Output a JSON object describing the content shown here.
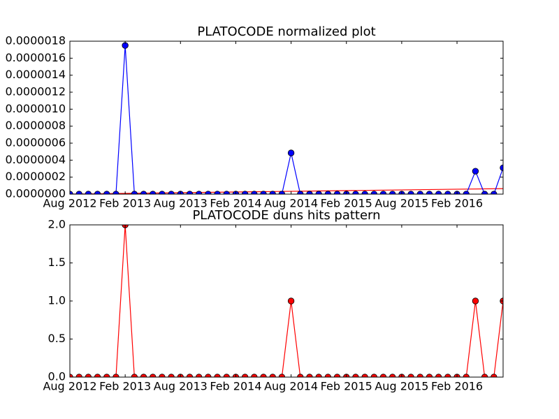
{
  "chart_data": [
    {
      "type": "line",
      "title": "PLATOCODE normalized plot",
      "x": [
        "2012-08",
        "2012-09",
        "2012-10",
        "2012-11",
        "2012-12",
        "2013-01",
        "2013-02",
        "2013-03",
        "2013-04",
        "2013-05",
        "2013-06",
        "2013-07",
        "2013-08",
        "2013-09",
        "2013-10",
        "2013-11",
        "2013-12",
        "2014-01",
        "2014-02",
        "2014-03",
        "2014-04",
        "2014-05",
        "2014-06",
        "2014-07",
        "2014-08",
        "2014-09",
        "2014-10",
        "2014-11",
        "2014-12",
        "2015-01",
        "2015-02",
        "2015-03",
        "2015-04",
        "2015-05",
        "2015-06",
        "2015-07",
        "2015-08",
        "2015-09",
        "2015-10",
        "2015-11",
        "2015-12",
        "2016-01",
        "2016-02",
        "2016-03",
        "2016-04",
        "2016-05",
        "2016-06",
        "2016-07"
      ],
      "series": [
        {
          "color": "#0000ff",
          "values": [
            0,
            0,
            0,
            0,
            0,
            0,
            1.75e-06,
            0,
            0,
            0,
            0,
            0,
            0,
            0,
            0,
            0,
            0,
            0,
            0,
            0,
            0,
            0,
            0,
            0,
            4.85e-07,
            0,
            0,
            0,
            0,
            0,
            0,
            0,
            0,
            0,
            0,
            0,
            0,
            0,
            0,
            0,
            0,
            0,
            0,
            0,
            2.7e-07,
            0,
            0,
            3.1e-07
          ]
        }
      ],
      "trend": {
        "color": "#ff0000",
        "x": [
          "2012-08",
          "2016-07"
        ],
        "values": [
          0,
          6.5e-08
        ]
      },
      "xlim": [
        "2012-08",
        "2016-07"
      ],
      "xticks": [
        {
          "value": "2012-08",
          "label": "Aug 2012"
        },
        {
          "value": "2013-02",
          "label": "Feb 2013"
        },
        {
          "value": "2013-08",
          "label": "Aug 2013"
        },
        {
          "value": "2014-02",
          "label": "Feb 2014"
        },
        {
          "value": "2014-08",
          "label": "Aug 2014"
        },
        {
          "value": "2015-02",
          "label": "Feb 2015"
        },
        {
          "value": "2015-08",
          "label": "Aug 2015"
        },
        {
          "value": "2016-02",
          "label": "Feb 2016"
        }
      ],
      "ylim": [
        0,
        1.8e-06
      ],
      "yticks": [
        {
          "value": 0,
          "label": "0.0000000"
        },
        {
          "value": 2e-07,
          "label": "0.0000002"
        },
        {
          "value": 4e-07,
          "label": "0.0000004"
        },
        {
          "value": 6e-07,
          "label": "0.0000006"
        },
        {
          "value": 8e-07,
          "label": "0.0000008"
        },
        {
          "value": 1e-06,
          "label": "0.0000010"
        },
        {
          "value": 1.2e-06,
          "label": "0.0000012"
        },
        {
          "value": 1.4e-06,
          "label": "0.0000014"
        },
        {
          "value": 1.6e-06,
          "label": "0.0000016"
        },
        {
          "value": 1.8e-06,
          "label": "0.0000018"
        }
      ]
    },
    {
      "type": "line",
      "title": "PLATOCODE duns hits pattern",
      "x": [
        "2012-08",
        "2012-09",
        "2012-10",
        "2012-11",
        "2012-12",
        "2013-01",
        "2013-02",
        "2013-03",
        "2013-04",
        "2013-05",
        "2013-06",
        "2013-07",
        "2013-08",
        "2013-09",
        "2013-10",
        "2013-11",
        "2013-12",
        "2014-01",
        "2014-02",
        "2014-03",
        "2014-04",
        "2014-05",
        "2014-06",
        "2014-07",
        "2014-08",
        "2014-09",
        "2014-10",
        "2014-11",
        "2014-12",
        "2015-01",
        "2015-02",
        "2015-03",
        "2015-04",
        "2015-05",
        "2015-06",
        "2015-07",
        "2015-08",
        "2015-09",
        "2015-10",
        "2015-11",
        "2015-12",
        "2016-01",
        "2016-02",
        "2016-03",
        "2016-04",
        "2016-05",
        "2016-06",
        "2016-07"
      ],
      "series": [
        {
          "color": "#ff0000",
          "values": [
            0,
            0,
            0,
            0,
            0,
            0,
            2,
            0,
            0,
            0,
            0,
            0,
            0,
            0,
            0,
            0,
            0,
            0,
            0,
            0,
            0,
            0,
            0,
            0,
            1,
            0,
            0,
            0,
            0,
            0,
            0,
            0,
            0,
            0,
            0,
            0,
            0,
            0,
            0,
            0,
            0,
            0,
            0,
            0,
            1,
            0,
            0,
            1
          ]
        }
      ],
      "xlim": [
        "2012-08",
        "2016-07"
      ],
      "xticks": [
        {
          "value": "2012-08",
          "label": "Aug 2012"
        },
        {
          "value": "2013-02",
          "label": "Feb 2013"
        },
        {
          "value": "2013-08",
          "label": "Aug 2013"
        },
        {
          "value": "2014-02",
          "label": "Feb 2014"
        },
        {
          "value": "2014-08",
          "label": "Aug 2014"
        },
        {
          "value": "2015-02",
          "label": "Feb 2015"
        },
        {
          "value": "2015-08",
          "label": "Aug 2015"
        },
        {
          "value": "2016-02",
          "label": "Feb 2016"
        }
      ],
      "ylim": [
        0,
        2
      ],
      "yticks": [
        {
          "value": 0,
          "label": "0.0"
        },
        0.5,
        {
          "value": 1,
          "label": "1.0"
        },
        1.5,
        {
          "value": 2,
          "label": "2.0"
        }
      ]
    }
  ]
}
